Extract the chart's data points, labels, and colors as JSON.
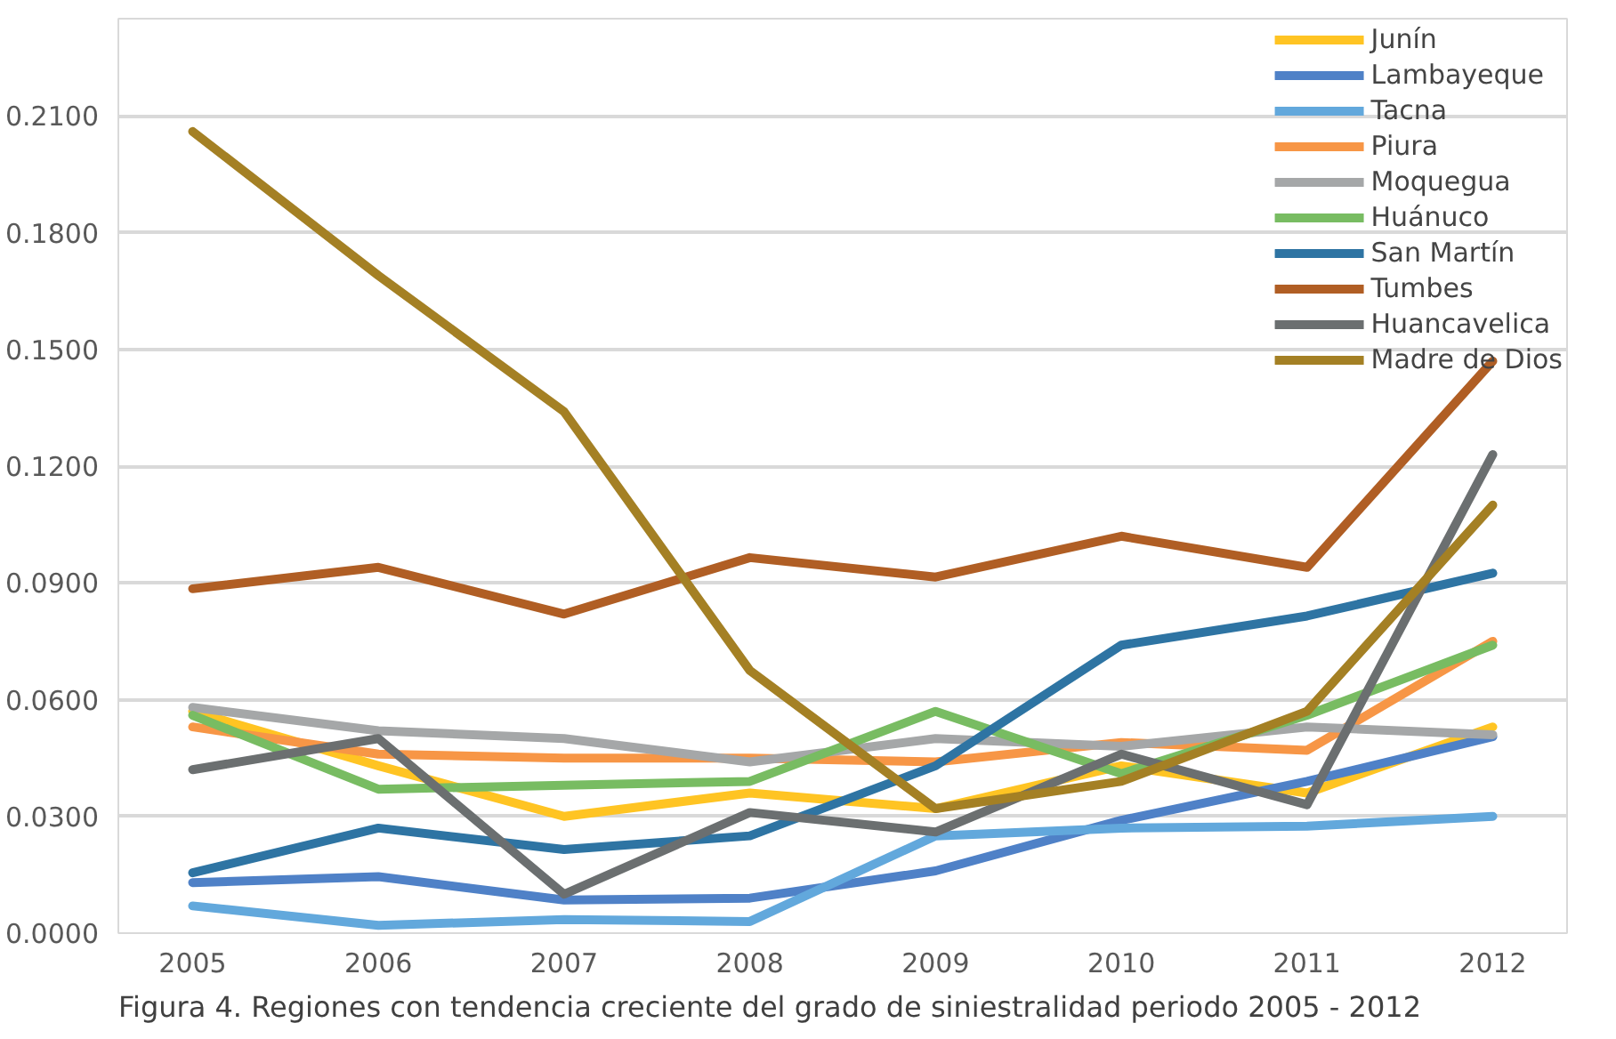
{
  "chart_data": {
    "type": "line",
    "x": [
      2005,
      2006,
      2007,
      2008,
      2009,
      2010,
      2011,
      2012
    ],
    "xticks": [
      2005,
      2006,
      2007,
      2008,
      2009,
      2010,
      2011,
      2012
    ],
    "xlim": [
      2004.6,
      2012.4
    ],
    "ylim": [
      0,
      0.235
    ],
    "yticks": [
      {
        "value": 0,
        "label": "0.0000"
      },
      {
        "value": 0.03,
        "label": "0.0300"
      },
      {
        "value": 0.06,
        "label": "0.0600"
      },
      {
        "value": 0.09,
        "label": "0.0900"
      },
      {
        "value": 0.12,
        "label": "0.1200"
      },
      {
        "value": 0.15,
        "label": "0.1500"
      },
      {
        "value": 0.18,
        "label": "0.1800"
      },
      {
        "value": 0.21,
        "label": "0.2100"
      }
    ],
    "grid": "y",
    "legend": "top right",
    "marker": "none",
    "line_style": "solid",
    "series": [
      {
        "name": "Junín",
        "color": "#ffc423",
        "values": [
          0.057,
          0.043,
          0.03,
          0.036,
          0.032,
          0.043,
          0.036,
          0.053
        ]
      },
      {
        "name": "Lambayeque",
        "color": "#4f81c7",
        "values": [
          0.013,
          0.0145,
          0.0085,
          0.009,
          0.016,
          0.029,
          0.039,
          0.0505
        ]
      },
      {
        "name": "Tacna",
        "color": "#62a8dc",
        "values": [
          0.007,
          0.002,
          0.0035,
          0.003,
          0.025,
          0.027,
          0.0275,
          0.03
        ]
      },
      {
        "name": "Piura",
        "color": "#f79646",
        "values": [
          0.053,
          0.046,
          0.045,
          0.045,
          0.044,
          0.049,
          0.047,
          0.075
        ]
      },
      {
        "name": "Moquegua",
        "color": "#a5a7a8",
        "values": [
          0.058,
          0.052,
          0.05,
          0.044,
          0.05,
          0.048,
          0.053,
          0.051
        ]
      },
      {
        "name": "Huánuco",
        "color": "#78bc62",
        "values": [
          0.056,
          0.037,
          0.038,
          0.039,
          0.057,
          0.041,
          0.056,
          0.074
        ]
      },
      {
        "name": "San Martín",
        "color": "#2e74a3",
        "values": [
          0.0155,
          0.027,
          0.0215,
          0.025,
          0.043,
          0.074,
          0.0815,
          0.0925
        ]
      },
      {
        "name": "Tumbes",
        "color": "#b05e24",
        "values": [
          0.0885,
          0.094,
          0.082,
          0.0965,
          0.0915,
          0.102,
          0.094,
          0.147
        ]
      },
      {
        "name": "Huancavelica",
        "color": "#6b6f70",
        "values": [
          0.042,
          0.05,
          0.01,
          0.031,
          0.026,
          0.046,
          0.033,
          0.123
        ]
      },
      {
        "name": "Madre de Dios",
        "color": "#a48024",
        "values": [
          0.206,
          0.169,
          0.134,
          0.0675,
          0.032,
          0.039,
          0.057,
          0.11
        ]
      }
    ],
    "annotations": [
      "Figura 4. Regiones con tendencia creciente del grado de siniestralidad periodo 2005 - 2012"
    ]
  }
}
